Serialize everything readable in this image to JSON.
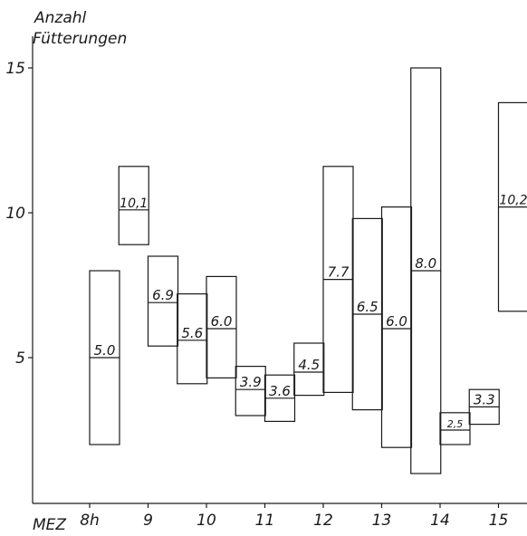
{
  "chart_data": {
    "type": "bar",
    "ylabel": [
      "Anzahl",
      "Fütterungen"
    ],
    "xlabel": "MEZ",
    "x_ticks": [
      "8h",
      "9",
      "10",
      "11",
      "12",
      "13",
      "14",
      "15"
    ],
    "y_ticks": [
      "5",
      "10",
      "15"
    ],
    "ylim": [
      0,
      16.5
    ],
    "bars": [
      {
        "x": 8.0,
        "low": 2.0,
        "high": 8.0,
        "mean": 5.0,
        "label": "5.0"
      },
      {
        "x": 8.5,
        "low": 8.9,
        "high": 11.6,
        "mean": 10.1,
        "label": "10,1"
      },
      {
        "x": 9.0,
        "low": 5.4,
        "high": 8.5,
        "mean": 6.9,
        "label": "6.9"
      },
      {
        "x": 9.5,
        "low": 4.1,
        "high": 7.2,
        "mean": 5.6,
        "label": "5.6"
      },
      {
        "x": 10.0,
        "low": 4.3,
        "high": 7.8,
        "mean": 6.0,
        "label": "6.0"
      },
      {
        "x": 10.5,
        "low": 3.0,
        "high": 4.7,
        "mean": 3.9,
        "label": "3.9"
      },
      {
        "x": 11.0,
        "low": 2.8,
        "high": 4.4,
        "mean": 3.6,
        "label": "3.6"
      },
      {
        "x": 11.5,
        "low": 3.7,
        "high": 5.5,
        "mean": 4.5,
        "label": "4.5"
      },
      {
        "x": 12.0,
        "low": 3.8,
        "high": 11.6,
        "mean": 7.7,
        "label": "7.7"
      },
      {
        "x": 12.5,
        "low": 3.2,
        "high": 9.8,
        "mean": 6.5,
        "label": "6.5"
      },
      {
        "x": 13.0,
        "low": 1.9,
        "high": 10.2,
        "mean": 6.0,
        "label": "6.0"
      },
      {
        "x": 13.5,
        "low": 1.0,
        "high": 15.0,
        "mean": 8.0,
        "label": "8.0"
      },
      {
        "x": 14.0,
        "low": 2.0,
        "high": 3.1,
        "mean": 2.5,
        "label": "2,5"
      },
      {
        "x": 14.5,
        "low": 2.7,
        "high": 3.9,
        "mean": 3.3,
        "label": "3.3"
      },
      {
        "x": 15.0,
        "low": 6.6,
        "high": 13.8,
        "mean": 10.2,
        "label": "10,2"
      }
    ]
  }
}
